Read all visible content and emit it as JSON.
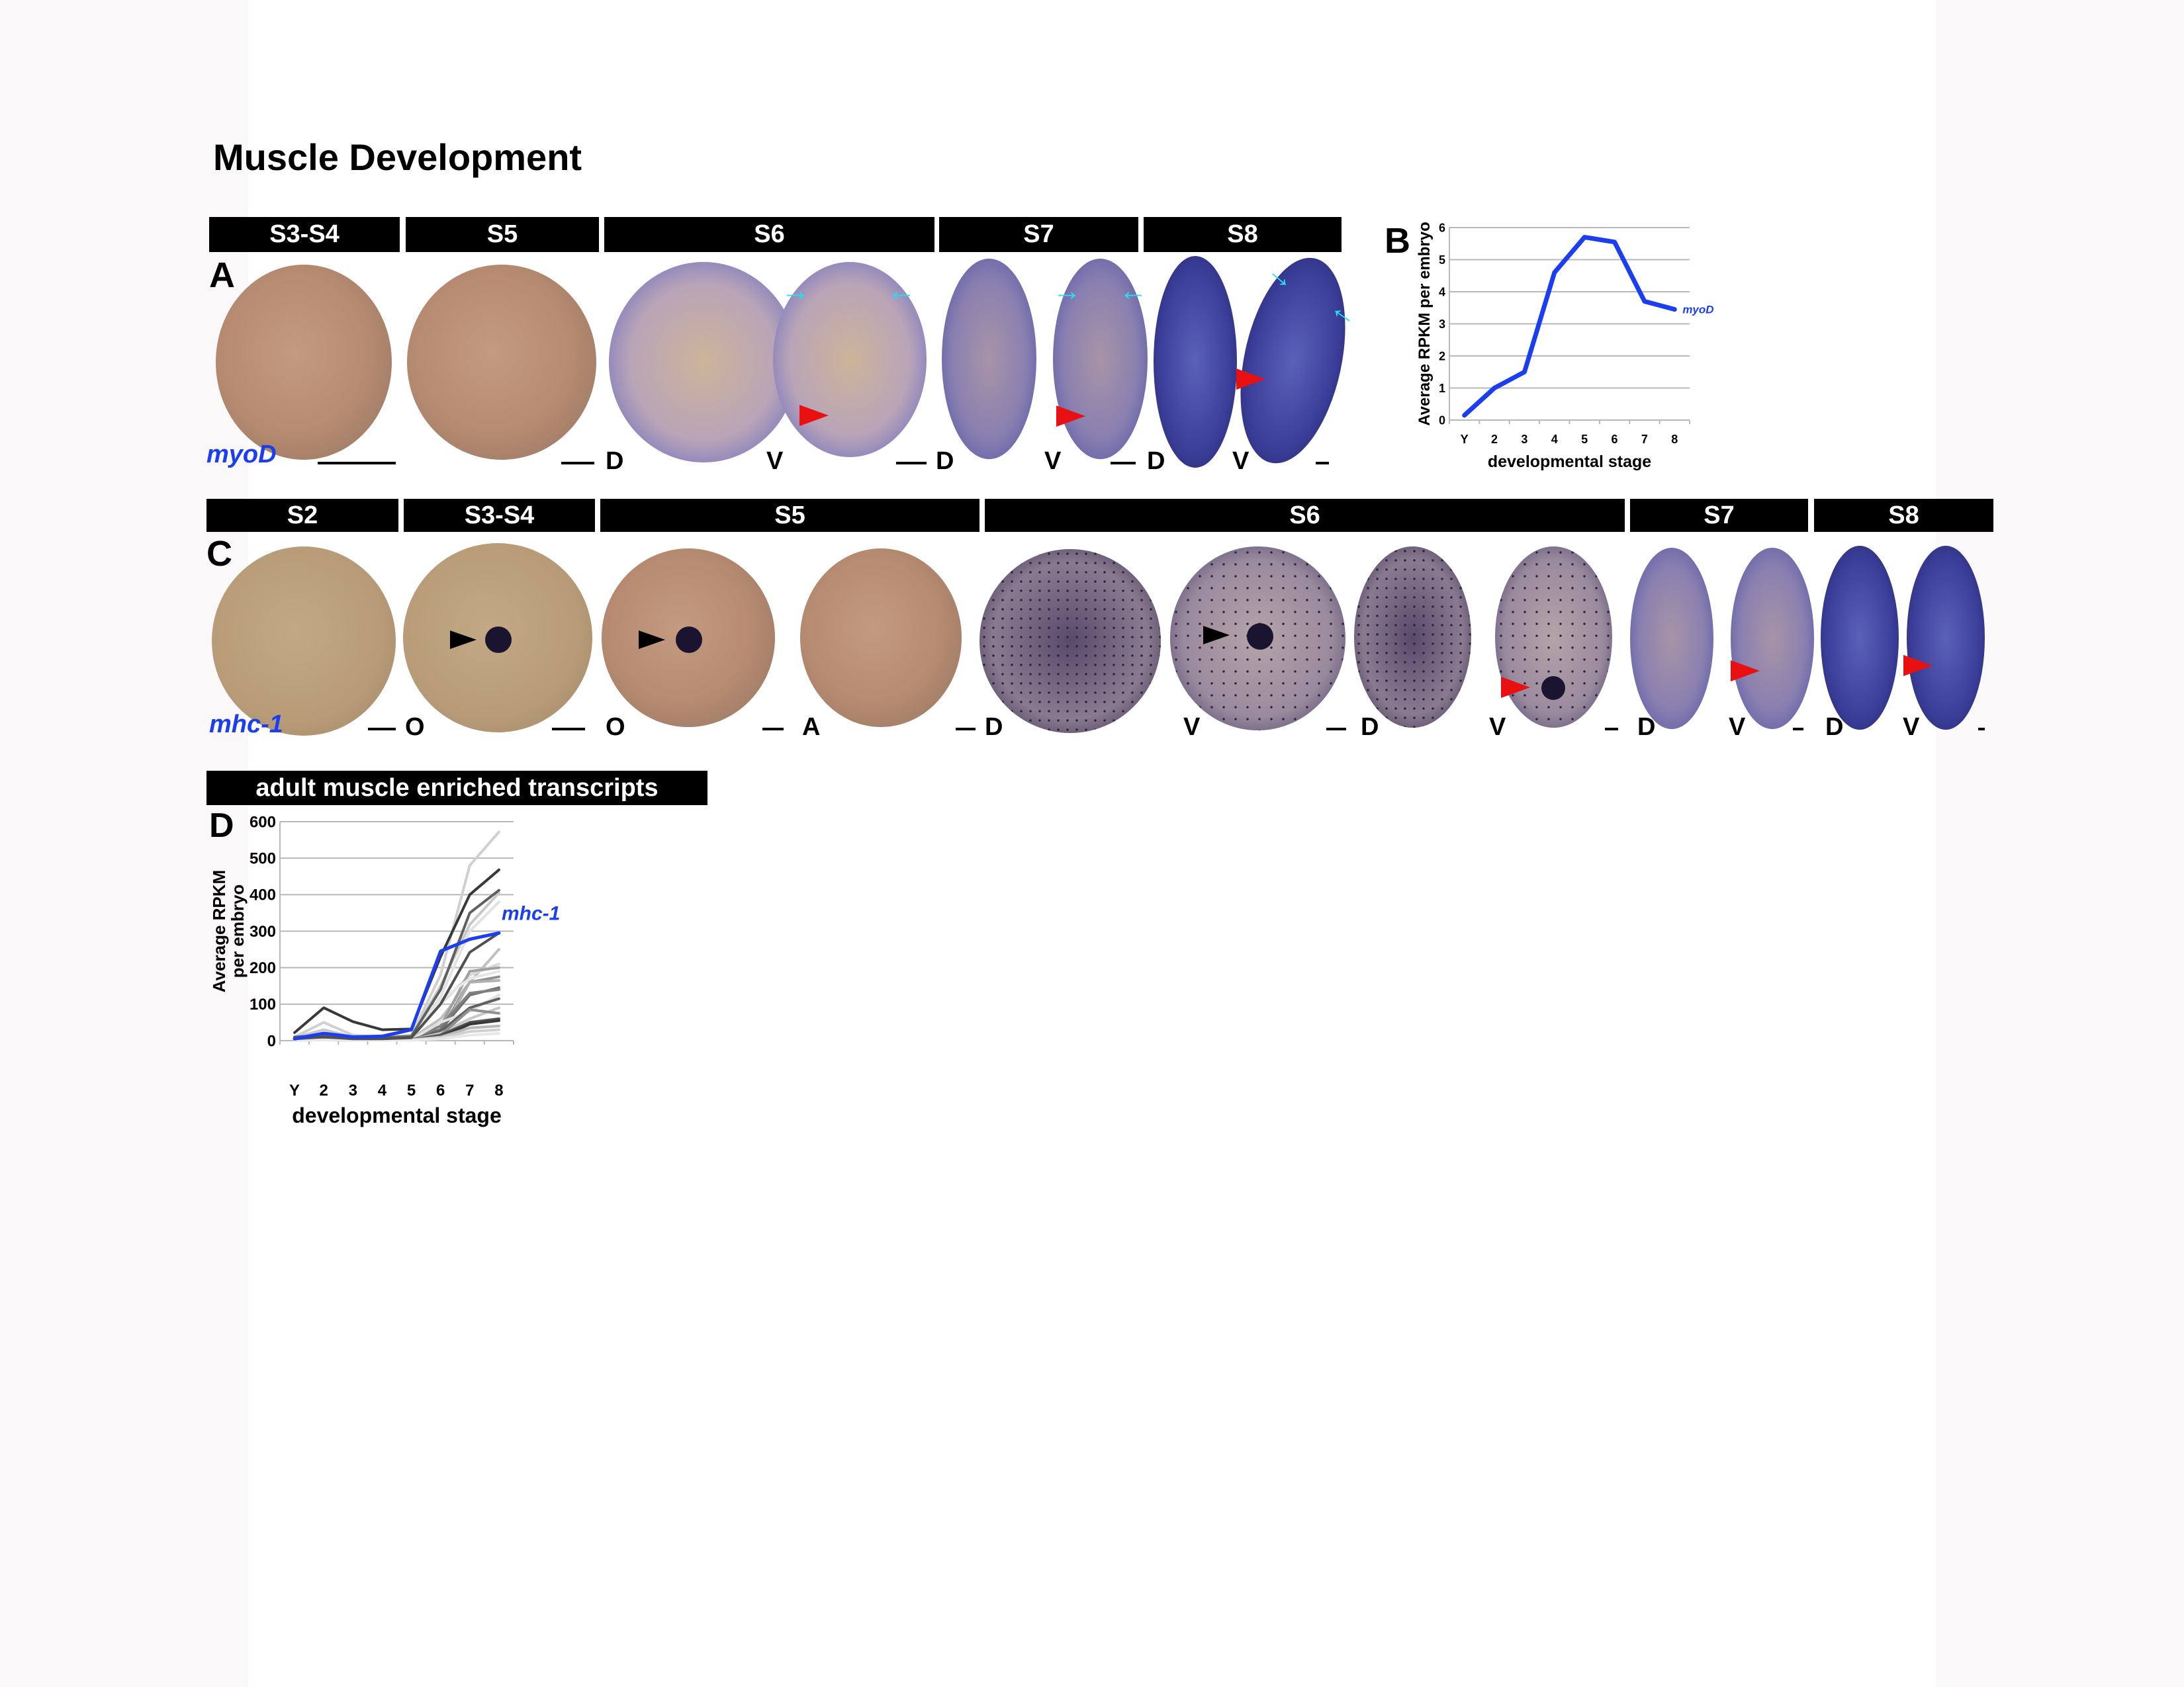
{
  "title": "Muscle Development",
  "panelA": {
    "letter": "A",
    "stages": [
      "S3-S4",
      "S5",
      "S6",
      "S7",
      "S8"
    ],
    "gene": "myoD",
    "views": [
      "D",
      "V",
      "D",
      "V",
      "D",
      "V"
    ]
  },
  "panelB": {
    "letter": "B"
  },
  "panelC": {
    "letter": "C",
    "stages": [
      "S2",
      "S3-S4",
      "S5",
      "S6",
      "S7",
      "S8"
    ],
    "gene": "mhc-1",
    "views": [
      "O",
      "O",
      "A",
      "D",
      "V",
      "D",
      "V",
      "D",
      "V",
      "D",
      "V"
    ]
  },
  "panelD": {
    "letter": "D",
    "header": "adult muscle enriched transcripts"
  },
  "colors": {
    "blue": "#1a3ef0",
    "cyan": "#22e0f0",
    "red": "#e81010"
  },
  "chart_data": [
    {
      "type": "line",
      "title": "",
      "xlabel": "developmental stage",
      "ylabel": "Average RPKM per embryo",
      "categories": [
        "Y",
        "2",
        "3",
        "4",
        "5",
        "6",
        "7",
        "8"
      ],
      "ylim": [
        0,
        6
      ],
      "yticks": [
        "0",
        "1",
        "2",
        "3",
        "4",
        "5",
        "6"
      ],
      "grid": true,
      "series": [
        {
          "name": "myoD",
          "color": "#1a3ef0",
          "values": [
            0.15,
            1.0,
            1.5,
            4.6,
            5.7,
            5.55,
            3.7,
            3.45
          ]
        }
      ]
    },
    {
      "type": "line",
      "title": "adult muscle enriched transcripts",
      "xlabel": "developmental stage",
      "ylabel": [
        "Average RPKM",
        "per embryo"
      ],
      "categories": [
        "Y",
        "2",
        "3",
        "4",
        "5",
        "6",
        "7",
        "8"
      ],
      "ylim": [
        0,
        600
      ],
      "yticks": [
        "0",
        "100",
        "200",
        "300",
        "400",
        "500",
        "600"
      ],
      "grid": true,
      "highlight": {
        "name": "mhc-1",
        "color": "#1a3ef0",
        "values": [
          5,
          20,
          10,
          12,
          30,
          245,
          278,
          295
        ]
      },
      "background_series": [
        {
          "color": "#d0d0d0",
          "values": [
            10,
            50,
            15,
            10,
            15,
            180,
            480,
            572
          ]
        },
        {
          "color": "#e2e2e2",
          "values": [
            5,
            10,
            5,
            5,
            8,
            120,
            300,
            380
          ]
        },
        {
          "color": "#c8c8c8",
          "values": [
            8,
            30,
            10,
            8,
            12,
            150,
            318,
            405
          ]
        },
        {
          "color": "#c0c0c0",
          "values": [
            5,
            8,
            5,
            5,
            6,
            60,
            160,
            250
          ]
        },
        {
          "color": "#d8d8d8",
          "values": [
            4,
            8,
            4,
            4,
            6,
            100,
            180,
            210
          ]
        },
        {
          "color": "#a0a0a0",
          "values": [
            3,
            6,
            3,
            3,
            5,
            40,
            190,
            200
          ]
        },
        {
          "color": "#e6e6e6",
          "values": [
            3,
            6,
            3,
            3,
            5,
            110,
            170,
            190
          ]
        },
        {
          "color": "#909090",
          "values": [
            3,
            5,
            3,
            3,
            4,
            30,
            160,
            175
          ]
        },
        {
          "color": "#b0b0b0",
          "values": [
            3,
            5,
            3,
            3,
            4,
            20,
            160,
            165
          ]
        },
        {
          "color": "#707070",
          "values": [
            2,
            5,
            2,
            2,
            4,
            30,
            125,
            145
          ]
        },
        {
          "color": "#808080",
          "values": [
            2,
            4,
            2,
            2,
            3,
            40,
            130,
            140
          ]
        },
        {
          "color": "#e0e0e0",
          "values": [
            2,
            4,
            2,
            2,
            3,
            50,
            80,
            125
          ]
        },
        {
          "color": "#606060",
          "values": [
            2,
            4,
            2,
            2,
            3,
            25,
            90,
            115
          ]
        },
        {
          "color": "#c8c8c8",
          "values": [
            2,
            4,
            2,
            2,
            3,
            20,
            60,
            90
          ]
        },
        {
          "color": "#909090",
          "values": [
            2,
            3,
            2,
            2,
            3,
            15,
            85,
            75
          ]
        },
        {
          "color": "#505050",
          "values": [
            1,
            3,
            1,
            1,
            2,
            15,
            50,
            60
          ]
        },
        {
          "color": "#383838",
          "values": [
            1,
            3,
            1,
            1,
            2,
            10,
            45,
            55
          ]
        },
        {
          "color": "#b8b8b8",
          "values": [
            1,
            2,
            1,
            1,
            2,
            10,
            35,
            40
          ]
        },
        {
          "color": "#d0d0d0",
          "values": [
            1,
            2,
            1,
            1,
            2,
            8,
            25,
            30
          ]
        },
        {
          "color": "#e8e8e8",
          "values": [
            1,
            2,
            1,
            1,
            1,
            5,
            15,
            20
          ]
        },
        {
          "color": "#606060",
          "values": [
            10,
            15,
            8,
            8,
            12,
            140,
            350,
            412
          ]
        },
        {
          "color": "#505050",
          "values": [
            5,
            10,
            5,
            5,
            8,
            100,
            242,
            295
          ]
        },
        {
          "color": "#383838",
          "values": [
            22,
            90,
            52,
            30,
            32,
            230,
            400,
            468
          ]
        }
      ]
    }
  ]
}
